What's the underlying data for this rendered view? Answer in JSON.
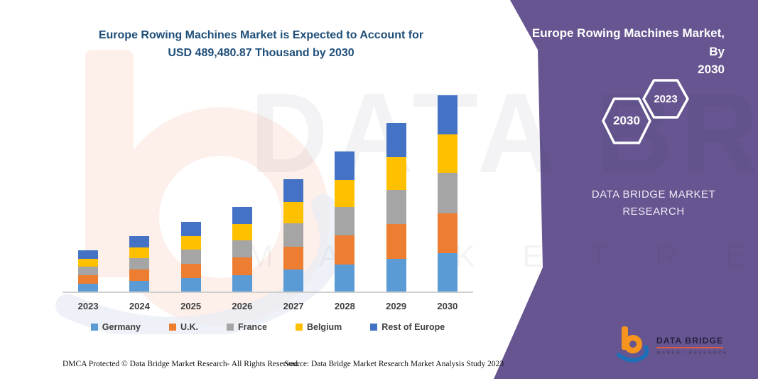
{
  "page": {
    "background": "#FFFFFF",
    "accent_purple": "#665590"
  },
  "chart": {
    "title_line1": "Europe Rowing Machines Market is Expected to Account for",
    "title_line2": "USD 489,480.87 Thousand by 2030",
    "title_color": "#1F4E79"
  },
  "chart_data": {
    "type": "bar",
    "stacked": true,
    "title": "Europe Rowing Machines Market is Expected to Account for USD 489,480.87 Thousand by 2030",
    "unit": "USD Thousand",
    "categories": [
      "2023",
      "2024",
      "2025",
      "2026",
      "2027",
      "2028",
      "2029",
      "2030"
    ],
    "series": [
      {
        "name": "Germany",
        "color": "#5B9BD5",
        "values": [
          20100,
          27000,
          33900,
          41200,
          54700,
          68200,
          82000,
          95500
        ]
      },
      {
        "name": "U.K.",
        "color": "#ED7D31",
        "values": [
          21200,
          28400,
          35700,
          43300,
          57500,
          71700,
          86200,
          100400
        ]
      },
      {
        "name": "France",
        "color": "#A5A5A5",
        "values": [
          21100,
          28300,
          35600,
          43200,
          57400,
          71500,
          86100,
          100300
        ]
      },
      {
        "name": "Belgium",
        "color": "#FFC000",
        "values": [
          20050,
          26900,
          33800,
          41000,
          54450,
          67900,
          81700,
          95100
        ]
      },
      {
        "name": "Rest of Europe",
        "color": "#4472C4",
        "values": [
          20700,
          27800,
          34900,
          42400,
          56200,
          70100,
          84350,
          98180.87
        ]
      }
    ],
    "totals": [
      103150,
      138400,
      173900,
      211100,
      280250,
      349400,
      420350,
      489480.87
    ],
    "ylim": [
      0,
      489480.87
    ],
    "grid": false,
    "y_axis_hidden": true,
    "legend_position": "bottom"
  },
  "panel": {
    "title_line1": "Europe Rowing Machines Market, By",
    "title_line2": "2030",
    "hexagons": [
      {
        "label": "2030"
      },
      {
        "label": "2023"
      }
    ],
    "brand": {
      "line1": "DATA BRIDGE MARKET",
      "line2": "RESEARCH"
    },
    "logo": {
      "line1": "DATA BRIDGE",
      "line2": "MARKET RESEARCH"
    }
  },
  "watermark": {
    "text_large": "DATA BRIDGE",
    "text_row": "M A R K E T   R E S E A R C H"
  },
  "footer": {
    "left": "DMCA Protected © Data Bridge Market Research-  All Rights Reserved.",
    "source": "Source: Data Bridge Market Research  Market Analysis Study 2023"
  }
}
